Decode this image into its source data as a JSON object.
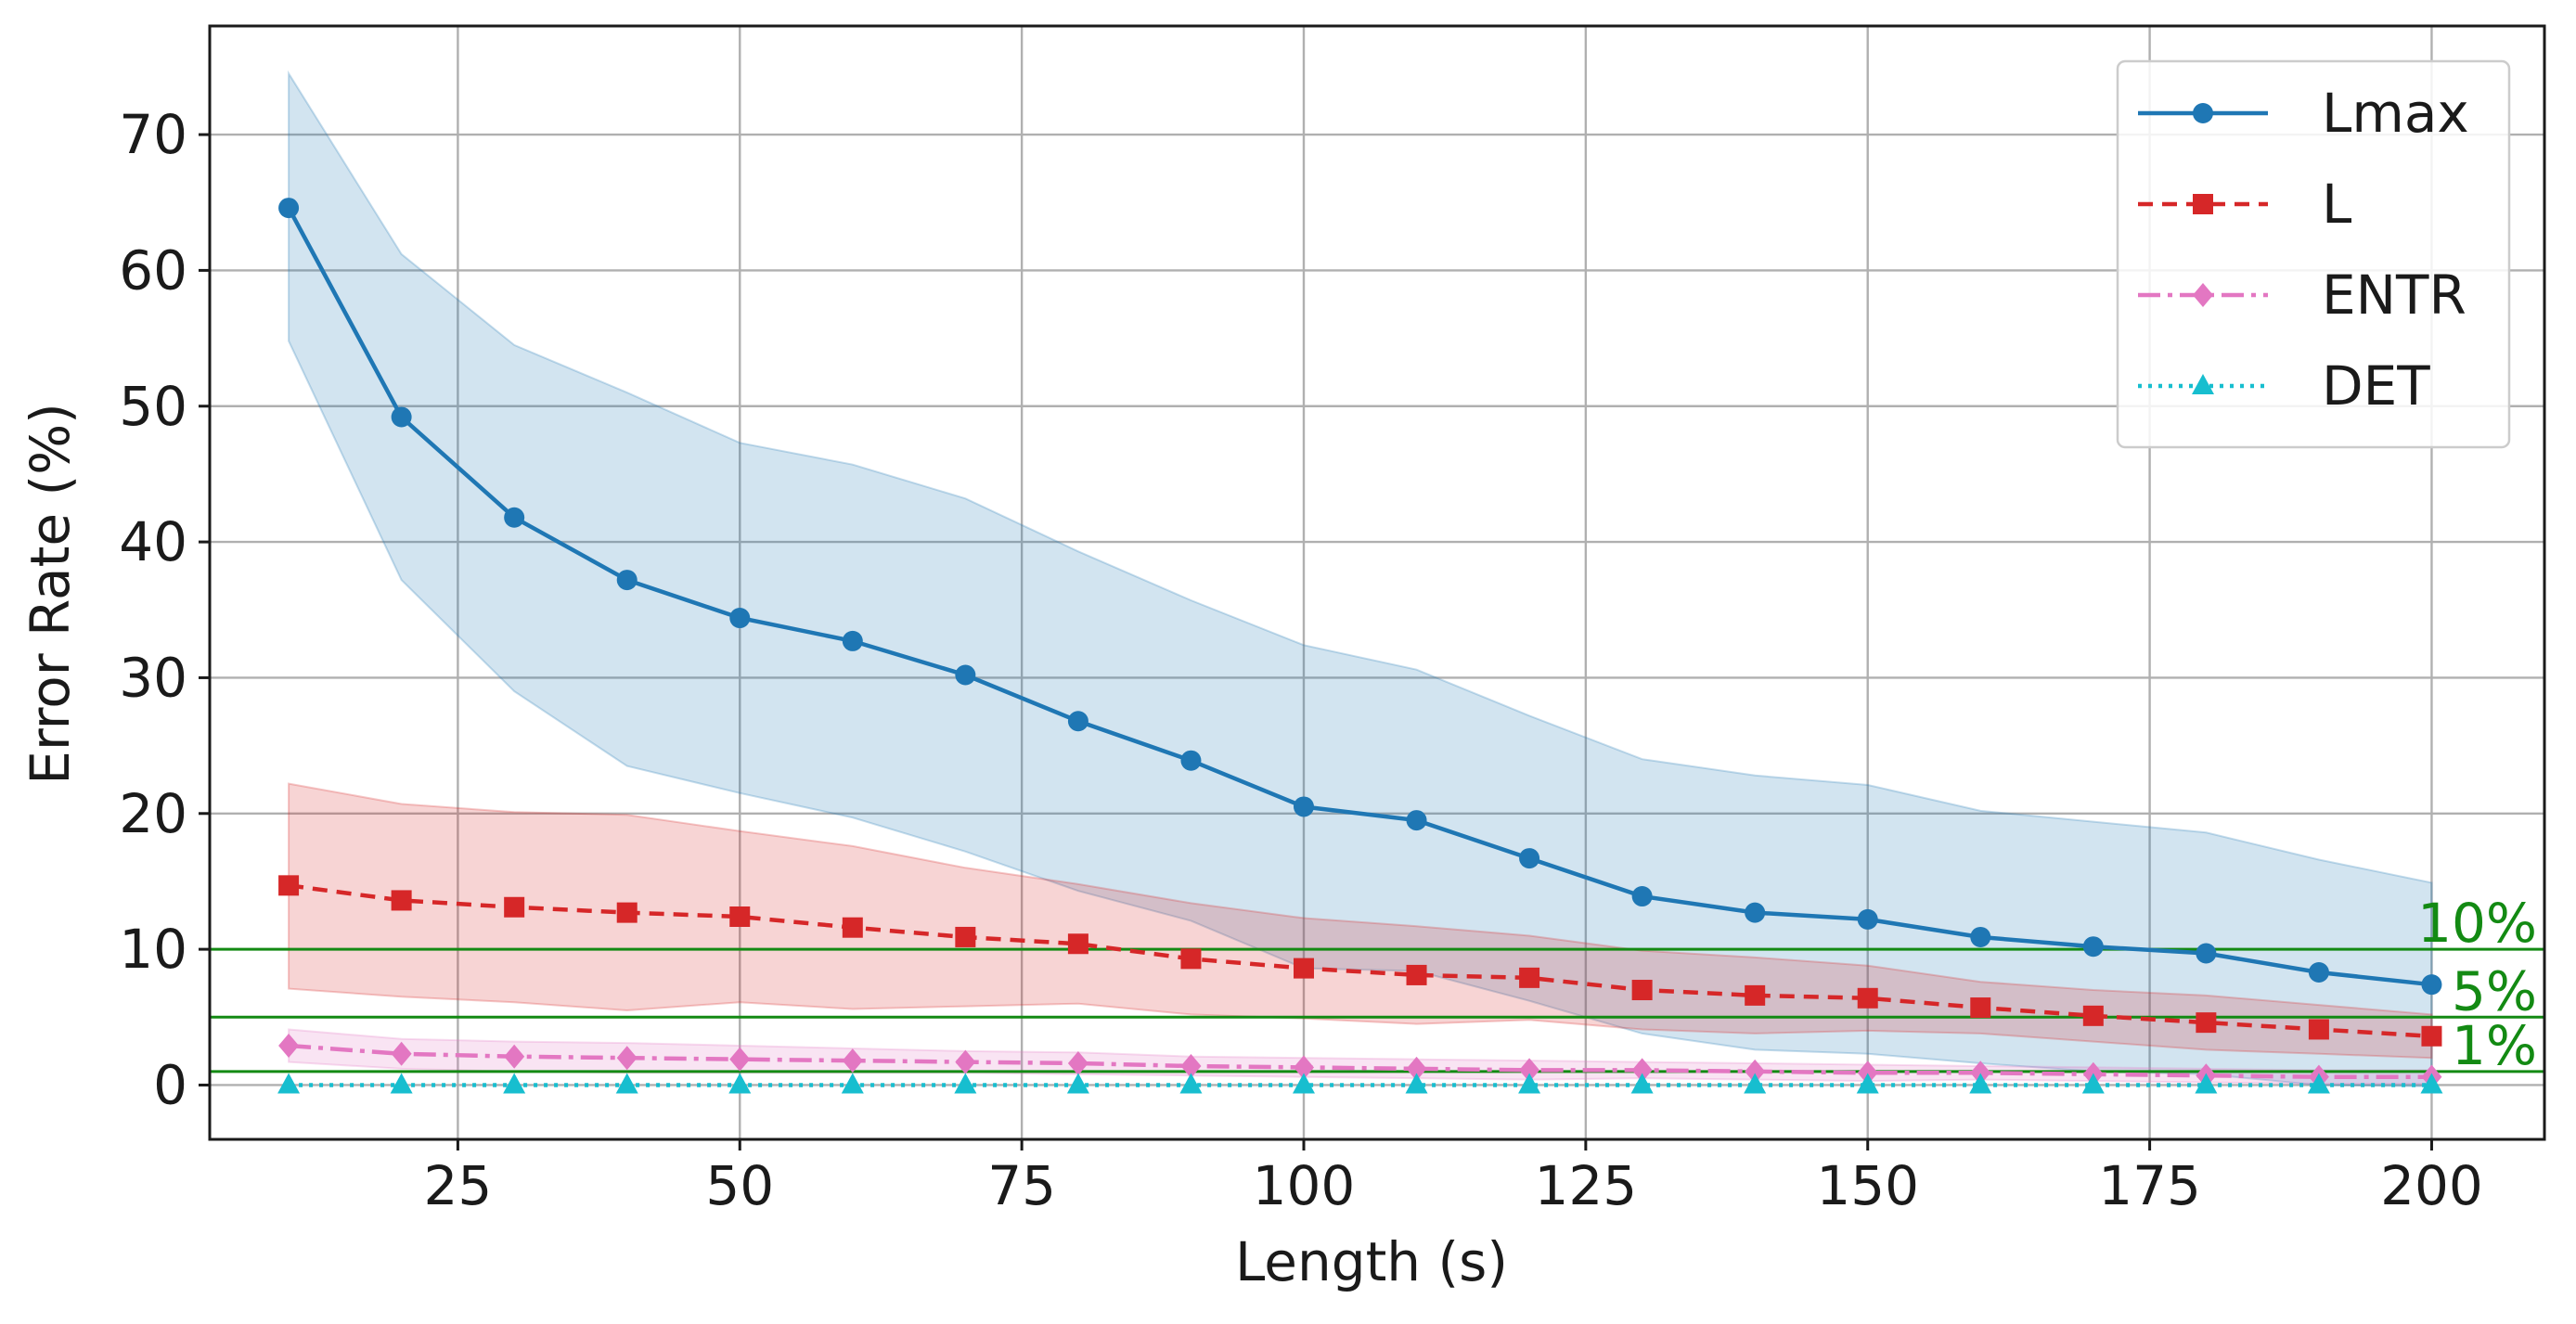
{
  "chart_data": {
    "type": "line",
    "title": "",
    "xlabel": "Length (s)",
    "ylabel": "Error Rate (%)",
    "xlim": [
      3,
      210
    ],
    "ylim": [
      -4,
      78
    ],
    "xticks": [
      25,
      50,
      75,
      100,
      125,
      150,
      175,
      200
    ],
    "yticks": [
      0,
      10,
      20,
      30,
      40,
      50,
      60,
      70
    ],
    "grid": true,
    "legend": "top-right",
    "x": [
      10,
      20,
      30,
      40,
      50,
      60,
      70,
      80,
      90,
      100,
      110,
      120,
      130,
      140,
      150,
      160,
      170,
      180,
      190,
      200
    ],
    "series": [
      {
        "name": "Lmax",
        "color": "#1f77b4",
        "marker": "circle",
        "dash": "solid",
        "values": [
          64.6,
          49.2,
          41.8,
          37.2,
          34.4,
          32.7,
          30.2,
          26.8,
          23.9,
          20.5,
          19.5,
          16.7,
          13.9,
          12.7,
          12.2,
          10.9,
          10.2,
          9.7,
          8.3,
          7.4
        ],
        "band_upper": [
          74.5,
          61.2,
          54.5,
          51.0,
          47.3,
          45.7,
          43.2,
          39.3,
          35.7,
          32.4,
          30.6,
          27.2,
          24.0,
          22.8,
          22.1,
          20.2,
          19.4,
          18.6,
          16.6,
          14.9
        ],
        "band_lower": [
          54.8,
          37.2,
          29.0,
          23.5,
          21.5,
          19.7,
          17.2,
          14.3,
          12.1,
          8.6,
          8.4,
          6.2,
          3.8,
          2.6,
          2.3,
          1.6,
          1.0,
          0.8,
          0.0,
          -0.1
        ]
      },
      {
        "name": "L",
        "color": "#d62728",
        "marker": "square",
        "dash": "dashed",
        "values": [
          14.7,
          13.6,
          13.1,
          12.7,
          12.4,
          11.6,
          10.9,
          10.4,
          9.3,
          8.6,
          8.1,
          7.9,
          7.0,
          6.6,
          6.4,
          5.7,
          5.1,
          4.6,
          4.1,
          3.6
        ],
        "band_upper": [
          22.2,
          20.7,
          20.1,
          19.9,
          18.7,
          17.6,
          16.0,
          14.8,
          13.4,
          12.3,
          11.7,
          11.0,
          9.9,
          9.4,
          8.8,
          7.6,
          7.0,
          6.6,
          5.9,
          5.2
        ],
        "band_lower": [
          7.1,
          6.5,
          6.1,
          5.5,
          6.1,
          5.6,
          5.8,
          6.0,
          5.2,
          4.9,
          4.5,
          4.8,
          4.1,
          3.8,
          4.0,
          3.8,
          3.2,
          2.6,
          2.3,
          2.0
        ]
      },
      {
        "name": "ENTR",
        "color": "#e377c2",
        "marker": "diamond",
        "dash": "dashdot",
        "values": [
          2.9,
          2.3,
          2.1,
          2.0,
          1.9,
          1.8,
          1.7,
          1.6,
          1.4,
          1.3,
          1.2,
          1.1,
          1.1,
          1.0,
          0.9,
          0.9,
          0.8,
          0.7,
          0.6,
          0.6
        ],
        "band_upper": [
          4.1,
          3.4,
          3.2,
          3.1,
          2.9,
          2.7,
          2.5,
          2.4,
          2.1,
          2.0,
          1.9,
          1.8,
          1.7,
          1.6,
          1.5,
          1.4,
          1.3,
          1.2,
          1.1,
          1.1
        ],
        "band_lower": [
          1.7,
          1.2,
          1.0,
          0.9,
          0.9,
          0.9,
          0.9,
          0.8,
          0.7,
          0.6,
          0.5,
          0.4,
          0.5,
          0.4,
          0.3,
          0.4,
          0.3,
          0.2,
          0.1,
          0.1
        ]
      },
      {
        "name": "DET",
        "color": "#17becf",
        "marker": "triangle",
        "dash": "dotted",
        "values": [
          0.0,
          0.0,
          0.0,
          0.0,
          0.0,
          0.0,
          0.0,
          0.0,
          0.0,
          0.0,
          0.0,
          0.0,
          0.0,
          0.0,
          0.0,
          0.0,
          0.0,
          0.0,
          0.0,
          0.0
        ]
      }
    ],
    "reference_lines": [
      {
        "value": 10,
        "label": "10%",
        "color": "#138a13"
      },
      {
        "value": 5,
        "label": "5%",
        "color": "#138a13"
      },
      {
        "value": 1,
        "label": "1%",
        "color": "#138a13"
      }
    ]
  }
}
